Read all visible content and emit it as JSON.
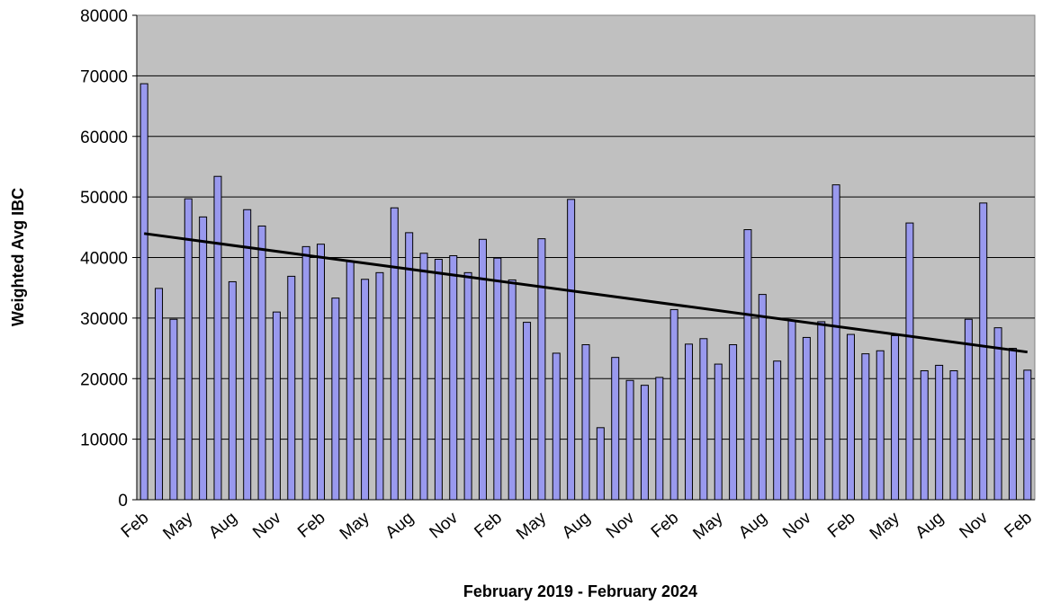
{
  "chart_data": {
    "type": "bar",
    "xlabel": "February 2019 -  February 2024",
    "ylabel": "Weighted Avg IBC",
    "categories": [
      "Feb",
      null,
      null,
      "May",
      null,
      null,
      "Aug",
      null,
      null,
      "Nov",
      null,
      null,
      "Feb",
      null,
      null,
      "May",
      null,
      null,
      "Aug",
      null,
      null,
      "Nov",
      null,
      null,
      "Feb",
      null,
      null,
      "May",
      null,
      null,
      "Aug",
      null,
      null,
      "Nov",
      null,
      null,
      "Feb",
      null,
      null,
      "May",
      null,
      null,
      "Aug",
      null,
      null,
      "Nov",
      null,
      null,
      "Feb",
      null,
      null,
      "May",
      null,
      null,
      "Aug",
      null,
      null,
      "Nov",
      null,
      null,
      "Feb"
    ],
    "values": [
      68700,
      34900,
      29800,
      49700,
      46700,
      53400,
      36000,
      47900,
      45200,
      31000,
      36900,
      41800,
      42200,
      33300,
      39400,
      36400,
      37500,
      48200,
      44100,
      40700,
      39700,
      40300,
      37500,
      43000,
      39900,
      36300,
      29300,
      43100,
      24200,
      49600,
      25600,
      11900,
      23500,
      19700,
      18900,
      20200,
      31400,
      25700,
      26600,
      22400,
      25600,
      44600,
      33900,
      22900,
      29600,
      26800,
      29400,
      52000,
      27300,
      24100,
      24600,
      27100,
      45700,
      21300,
      22200,
      21300,
      29800,
      49000,
      28400,
      25000,
      21400
    ],
    "color": "#9999ee",
    "trendline": true,
    "ylim": [
      0,
      80000
    ],
    "yticks": [
      0,
      10000,
      20000,
      30000,
      40000,
      50000,
      60000,
      70000,
      80000
    ],
    "grid": true
  }
}
